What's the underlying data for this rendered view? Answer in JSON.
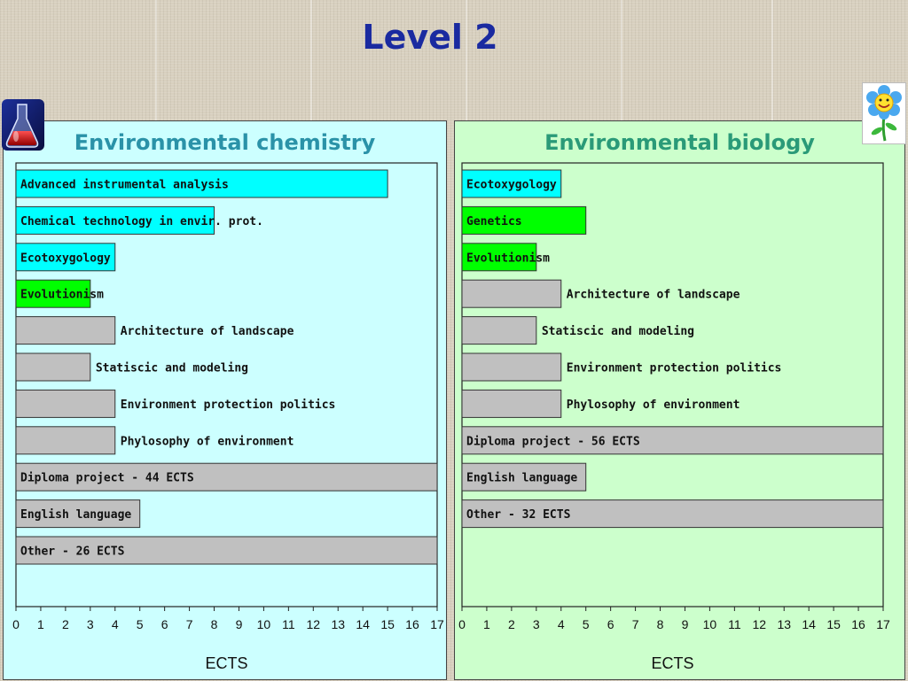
{
  "slide": {
    "title": "Level 2"
  },
  "icons": {
    "left": "chemistry-flask-icon",
    "right": "smiling-flower-icon"
  },
  "colors": {
    "cyan": "#00ffff",
    "green": "#00ff00",
    "gray": "#c0c0c0"
  },
  "chart_data": [
    {
      "type": "bar",
      "orientation": "horizontal",
      "title": "Environmental chemistry",
      "xlabel": "ECTS",
      "xlim": [
        0,
        17
      ],
      "xticks": [
        0,
        1,
        2,
        3,
        4,
        5,
        6,
        7,
        8,
        9,
        10,
        11,
        12,
        13,
        14,
        15,
        16,
        17
      ],
      "bars": [
        {
          "label": "Advanced instrumental analysis",
          "value": 15,
          "color": "cyan",
          "label_pos": "inside"
        },
        {
          "label": "Chemical technology in envir. prot.",
          "value": 8,
          "color": "cyan",
          "label_pos": "inside"
        },
        {
          "label": "Ecotoxygology",
          "value": 4,
          "color": "cyan",
          "label_pos": "inside"
        },
        {
          "label": "Evolutionism",
          "value": 3,
          "color": "green",
          "label_pos": "inside"
        },
        {
          "label": "Architecture of landscape",
          "value": 4,
          "color": "gray",
          "label_pos": "outside"
        },
        {
          "label": "Statiscic and modeling",
          "value": 3,
          "color": "gray",
          "label_pos": "outside"
        },
        {
          "label": "Environment protection politics",
          "value": 4,
          "color": "gray",
          "label_pos": "outside"
        },
        {
          "label": "Phylosophy of environment",
          "value": 4,
          "color": "gray",
          "label_pos": "outside"
        },
        {
          "label": "Diploma project - 44 ECTS",
          "value": 17,
          "color": "gray",
          "label_pos": "inside"
        },
        {
          "label": "English language",
          "value": 5,
          "color": "gray",
          "label_pos": "inside"
        },
        {
          "label": "Other - 26 ECTS",
          "value": 17,
          "color": "gray",
          "label_pos": "inside"
        }
      ]
    },
    {
      "type": "bar",
      "orientation": "horizontal",
      "title": "Environmental biology",
      "xlabel": "ECTS",
      "xlim": [
        0,
        17
      ],
      "xticks": [
        0,
        1,
        2,
        3,
        4,
        5,
        6,
        7,
        8,
        9,
        10,
        11,
        12,
        13,
        14,
        15,
        16,
        17
      ],
      "bars": [
        {
          "label": "Ecotoxygology",
          "value": 4,
          "color": "cyan",
          "label_pos": "inside"
        },
        {
          "label": "Genetics",
          "value": 5,
          "color": "green",
          "label_pos": "inside"
        },
        {
          "label": "Evolutionism",
          "value": 3,
          "color": "green",
          "label_pos": "inside"
        },
        {
          "label": "Architecture of landscape",
          "value": 4,
          "color": "gray",
          "label_pos": "outside"
        },
        {
          "label": "Statiscic and modeling",
          "value": 3,
          "color": "gray",
          "label_pos": "outside"
        },
        {
          "label": "Environment protection politics",
          "value": 4,
          "color": "gray",
          "label_pos": "outside"
        },
        {
          "label": "Phylosophy of environment",
          "value": 4,
          "color": "gray",
          "label_pos": "outside"
        },
        {
          "label": "Diploma project - 56 ECTS",
          "value": 17,
          "color": "gray",
          "label_pos": "inside"
        },
        {
          "label": "English language",
          "value": 5,
          "color": "gray",
          "label_pos": "inside"
        },
        {
          "label": "Other - 32 ECTS",
          "value": 17,
          "color": "gray",
          "label_pos": "inside"
        }
      ]
    }
  ]
}
